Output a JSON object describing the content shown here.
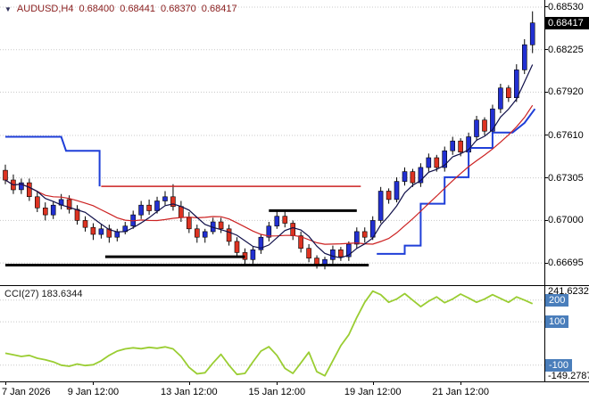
{
  "header": {
    "arrow": "▼",
    "symbol": "AUDUSD,H4",
    "open": "0.68400",
    "high": "0.68441",
    "low": "0.68370",
    "close": "0.68417"
  },
  "colors": {
    "candle_up": "#2230d2",
    "candle_down": "#dd3322",
    "wick": "#000000",
    "ma_fast": "#10104a",
    "ma_slow": "#cc2222",
    "cci_line": "#9acd32",
    "grid": "#c8c8c8",
    "level_tag_bg": "#4a7ebb",
    "header_text": "#8b2020",
    "current_tag_bg": "#000000"
  },
  "price_axis": {
    "labels": [
      "0.68530",
      "0.68225",
      "0.67920",
      "0.67610",
      "0.67305",
      "0.67000",
      "0.66695"
    ],
    "current": "0.68417"
  },
  "time_axis": {
    "ticks": [
      {
        "index": 0,
        "label": "7 Jan 2026"
      },
      {
        "index": 11,
        "label": "9 Jan 12:00"
      },
      {
        "index": 23,
        "label": "13 Jan 12:00"
      },
      {
        "index": 34,
        "label": "15 Jan 12:00"
      },
      {
        "index": 46,
        "label": "19 Jan 12:00"
      },
      {
        "index": 57,
        "label": "21 Jan 12:00"
      }
    ]
  },
  "indicator": {
    "label": "CCI(27) 183.6344",
    "max_label": {
      "text": "241.6232",
      "value": 241.6232
    },
    "min_label": {
      "text": "-149.2787",
      "value": -149.2787
    },
    "levels": [
      {
        "label": "200",
        "value": 200
      },
      {
        "label": "100",
        "value": 100
      },
      {
        "label": "-100",
        "value": -100
      }
    ]
  },
  "chart_data": {
    "type": "candlestick",
    "title": "AUDUSD,H4",
    "price_ylim": [
      0.66536,
      0.68581
    ],
    "candles": {
      "open": [
        0.6736,
        0.6729,
        0.6722,
        0.6727,
        0.6717,
        0.6709,
        0.6704,
        0.6711,
        0.6715,
        0.6708,
        0.67,
        0.6695,
        0.669,
        0.6694,
        0.6688,
        0.6692,
        0.6696,
        0.6704,
        0.6711,
        0.6707,
        0.6714,
        0.6717,
        0.671,
        0.6702,
        0.6694,
        0.6688,
        0.6692,
        0.6699,
        0.6694,
        0.6685,
        0.6677,
        0.6672,
        0.6679,
        0.6688,
        0.6696,
        0.6703,
        0.6698,
        0.6689,
        0.668,
        0.6673,
        0.6668,
        0.6672,
        0.6679,
        0.6674,
        0.6683,
        0.6692,
        0.6688,
        0.67,
        0.6721,
        0.6715,
        0.6728,
        0.6735,
        0.6727,
        0.6738,
        0.6745,
        0.6738,
        0.675,
        0.6757,
        0.6749,
        0.676,
        0.6772,
        0.6764,
        0.678,
        0.6795,
        0.6788,
        0.6808,
        0.6826
      ],
      "high": [
        0.674,
        0.6733,
        0.673,
        0.673,
        0.6721,
        0.6713,
        0.6714,
        0.6719,
        0.6718,
        0.6711,
        0.6703,
        0.6698,
        0.6697,
        0.6697,
        0.6694,
        0.6699,
        0.6707,
        0.6714,
        0.6715,
        0.6717,
        0.6721,
        0.6726,
        0.6714,
        0.6706,
        0.6697,
        0.6694,
        0.6702,
        0.6702,
        0.6697,
        0.6688,
        0.668,
        0.6681,
        0.669,
        0.6699,
        0.6707,
        0.6707,
        0.67,
        0.6692,
        0.6683,
        0.6675,
        0.6674,
        0.6682,
        0.6681,
        0.6685,
        0.6695,
        0.6695,
        0.6703,
        0.6724,
        0.6723,
        0.6731,
        0.6738,
        0.6737,
        0.6741,
        0.6748,
        0.6747,
        0.6753,
        0.676,
        0.6759,
        0.6763,
        0.6775,
        0.6774,
        0.6783,
        0.6798,
        0.6797,
        0.6812,
        0.683,
        0.685
      ],
      "low": [
        0.6726,
        0.6719,
        0.6719,
        0.6714,
        0.6706,
        0.67,
        0.6701,
        0.6708,
        0.6705,
        0.6697,
        0.6692,
        0.6686,
        0.6687,
        0.6684,
        0.6685,
        0.669,
        0.6694,
        0.6701,
        0.6704,
        0.6705,
        0.6711,
        0.6707,
        0.6699,
        0.6691,
        0.6684,
        0.6684,
        0.669,
        0.6691,
        0.6682,
        0.6674,
        0.6668,
        0.6669,
        0.6676,
        0.6685,
        0.6694,
        0.6695,
        0.6686,
        0.6677,
        0.667,
        0.66655,
        0.6665,
        0.6669,
        0.6671,
        0.6671,
        0.668,
        0.6684,
        0.6686,
        0.6698,
        0.6712,
        0.6713,
        0.6725,
        0.6724,
        0.6724,
        0.6735,
        0.6735,
        0.6735,
        0.6747,
        0.6746,
        0.6746,
        0.6757,
        0.6761,
        0.6761,
        0.6777,
        0.6785,
        0.6785,
        0.6805,
        0.682
      ],
      "close": [
        0.6729,
        0.6722,
        0.6727,
        0.6717,
        0.6709,
        0.6704,
        0.6711,
        0.6715,
        0.6708,
        0.67,
        0.6695,
        0.669,
        0.6694,
        0.6688,
        0.6692,
        0.6696,
        0.6704,
        0.6711,
        0.6707,
        0.6714,
        0.6717,
        0.671,
        0.6702,
        0.6694,
        0.6688,
        0.6692,
        0.6699,
        0.6694,
        0.6685,
        0.6677,
        0.6672,
        0.6679,
        0.6688,
        0.6696,
        0.6703,
        0.6698,
        0.6689,
        0.668,
        0.6673,
        0.6668,
        0.6672,
        0.6679,
        0.6674,
        0.6683,
        0.6692,
        0.6688,
        0.67,
        0.6721,
        0.6715,
        0.6728,
        0.6735,
        0.6727,
        0.6738,
        0.6745,
        0.6738,
        0.675,
        0.6757,
        0.6749,
        0.676,
        0.6772,
        0.6764,
        0.678,
        0.6795,
        0.6788,
        0.6808,
        0.6826,
        0.68417
      ]
    },
    "ma_fast_period": 5,
    "ma_slow_period": 12,
    "segments": [
      {
        "name": "step-line-blue-left",
        "color": "#1f3fd8",
        "width": 2,
        "points": [
          [
            0,
            0.676
          ],
          [
            7,
            0.676
          ],
          [
            7.6,
            0.675
          ],
          [
            11.8,
            0.675
          ],
          [
            11.8,
            0.67245
          ]
        ]
      },
      {
        "name": "resistance-line-red",
        "color": "#cc2222",
        "width": 1.5,
        "points": [
          [
            12,
            0.67245
          ],
          [
            44.5,
            0.67245
          ]
        ]
      },
      {
        "name": "support-line-black-long",
        "color": "#000000",
        "width": 3,
        "points": [
          [
            0,
            0.6668
          ],
          [
            45.5,
            0.6668
          ]
        ]
      },
      {
        "name": "support-line-black-mid",
        "color": "#000000",
        "width": 3,
        "points": [
          [
            12.5,
            0.6674
          ],
          [
            30,
            0.6674
          ]
        ]
      },
      {
        "name": "resistance-line-black-short",
        "color": "#000000",
        "width": 3,
        "points": [
          [
            33,
            0.6707
          ],
          [
            44,
            0.6707
          ]
        ]
      },
      {
        "name": "step-line-blue-right",
        "color": "#1f3fd8",
        "width": 2,
        "points": [
          [
            46.5,
            0.6676
          ],
          [
            50,
            0.6676
          ],
          [
            50,
            0.6682
          ],
          [
            52,
            0.6682
          ],
          [
            52,
            0.6712
          ],
          [
            55,
            0.6712
          ],
          [
            55,
            0.6731
          ],
          [
            58,
            0.6731
          ],
          [
            58,
            0.6752
          ],
          [
            61,
            0.6752
          ],
          [
            61,
            0.6763
          ],
          [
            63.5,
            0.6763
          ],
          [
            65,
            0.677
          ],
          [
            66.3,
            0.678
          ]
        ]
      }
    ],
    "cci": {
      "period": 27,
      "current": 183.6344,
      "ylim": [
        -175,
        265
      ],
      "values": [
        -45,
        -52,
        -60,
        -55,
        -68,
        -75,
        -85,
        -100,
        -105,
        -95,
        -102,
        -98,
        -80,
        -55,
        -35,
        -25,
        -20,
        -24,
        -18,
        -22,
        -16,
        -25,
        -60,
        -110,
        -140,
        -135,
        -90,
        -50,
        -100,
        -143,
        -138,
        -85,
        -35,
        -15,
        -55,
        -115,
        -138,
        -90,
        -40,
        -130,
        -149.2787,
        -80,
        -10,
        40,
        120,
        190,
        241.6232,
        225,
        190,
        205,
        230,
        200,
        170,
        195,
        215,
        188,
        205,
        228,
        210,
        190,
        205,
        225,
        208,
        190,
        215,
        200,
        183.6344
      ]
    }
  }
}
